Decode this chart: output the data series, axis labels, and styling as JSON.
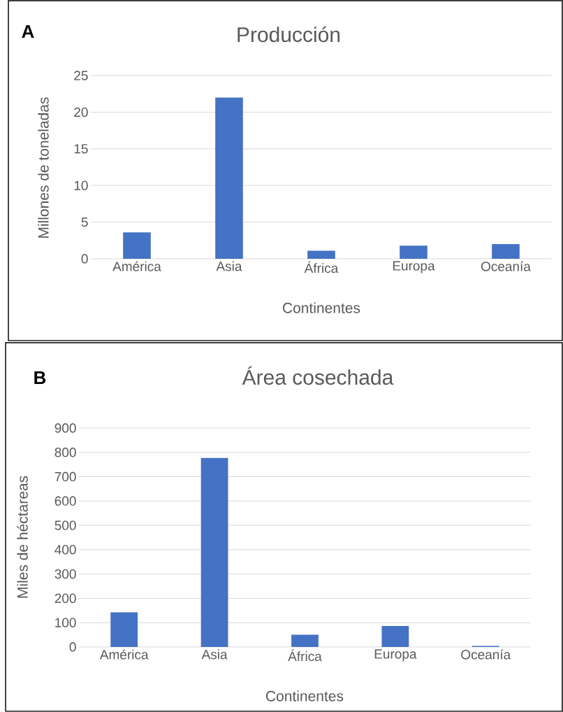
{
  "chart_data": [
    {
      "type": "bar",
      "title": "Producción",
      "xlabel": "Continentes",
      "ylabel": "Millones de toneladas",
      "annotations": [
        "A"
      ],
      "categories": [
        "América",
        "Asia",
        "África",
        "Europa",
        "Oceanía"
      ],
      "values": [
        3.6,
        22.0,
        1.1,
        1.8,
        2.0
      ],
      "color": "#4472c4",
      "ylim": [
        0,
        25
      ],
      "yticks": [
        0,
        5,
        10,
        15,
        20,
        25
      ],
      "grid": "y"
    },
    {
      "type": "bar",
      "title": "Área cosechada",
      "xlabel": "Continentes",
      "ylabel": "Miles de héctareas",
      "annotations": [
        "B"
      ],
      "categories": [
        "América",
        "Asia",
        "África",
        "Europa",
        "Oceanía"
      ],
      "values": [
        142,
        777,
        50,
        86,
        4
      ],
      "color": "#4472c4",
      "ylim": [
        0,
        900
      ],
      "yticks": [
        0,
        100,
        200,
        300,
        400,
        500,
        600,
        700,
        800,
        900
      ],
      "grid": "y"
    }
  ]
}
